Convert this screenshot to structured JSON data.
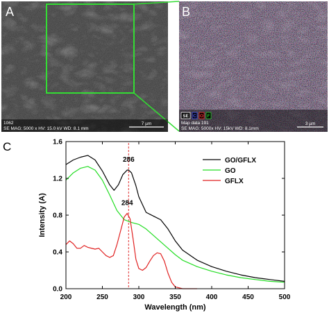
{
  "panels": {
    "a": {
      "letter": "A",
      "sample_id": "1062",
      "info": "SE  MAG: 5000 x  HV: 15.0 kV  WD: 8.1 mm",
      "scale_text": "7 µm",
      "colors": {
        "background": "#3a3a3a",
        "zoom_box": "#33dd33",
        "label": "#ffffff"
      }
    },
    "b": {
      "letter": "B",
      "map_text": "Map data 191",
      "info": "SE  MAG: 5000x  HV: 15kV  WD: 8.1mm",
      "scale_text": "3 µm",
      "legend": [
        {
          "text": "SE",
          "color": "#ffffff"
        },
        {
          "text": "C",
          "color": "#4d5bff"
        },
        {
          "text": "O",
          "color": "#ff3030"
        },
        {
          "text": "F",
          "color": "#2bd12b"
        }
      ]
    },
    "c": {
      "letter": "C"
    }
  },
  "chart_data": {
    "type": "line",
    "xlabel": "Wavelength (nm)",
    "ylabel": "Intensity (A)",
    "xlim": [
      200,
      500
    ],
    "ylim": [
      0,
      1.6
    ],
    "xticks": [
      200,
      250,
      300,
      350,
      400,
      450,
      500
    ],
    "yticks": [
      0.0,
      0.4,
      0.8,
      1.2,
      1.6
    ],
    "ytick_labels": [
      "0.0",
      "0.4",
      "0.8",
      "1.2",
      "1.6"
    ],
    "grid": false,
    "legend_position": "top-right",
    "annotations": [
      {
        "text": "286",
        "x": 286,
        "y": 1.29
      },
      {
        "text": "284",
        "x": 284,
        "y": 0.82
      }
    ],
    "marker_line": {
      "x": 286,
      "color": "#e03030"
    },
    "series": [
      {
        "name": "GO/GFLX",
        "color": "#000000",
        "x": [
          200,
          210,
          220,
          230,
          240,
          250,
          260,
          266,
          272,
          278,
          284,
          286,
          290,
          296,
          300,
          310,
          320,
          330,
          340,
          350,
          360,
          380,
          400,
          420,
          440,
          460,
          480,
          500
        ],
        "y": [
          1.35,
          1.4,
          1.43,
          1.45,
          1.4,
          1.28,
          1.13,
          1.07,
          1.13,
          1.24,
          1.29,
          1.29,
          1.26,
          1.12,
          1.0,
          0.83,
          0.79,
          0.75,
          0.65,
          0.52,
          0.42,
          0.31,
          0.24,
          0.19,
          0.15,
          0.12,
          0.1,
          0.08
        ]
      },
      {
        "name": "GO",
        "color": "#22dd22",
        "x": [
          200,
          210,
          220,
          230,
          240,
          250,
          260,
          270,
          280,
          290,
          300,
          310,
          320,
          330,
          340,
          350,
          360,
          380,
          400,
          420,
          440,
          460,
          480,
          500
        ],
        "y": [
          1.18,
          1.26,
          1.31,
          1.33,
          1.29,
          1.18,
          1.02,
          0.85,
          0.75,
          0.72,
          0.7,
          0.65,
          0.58,
          0.51,
          0.44,
          0.37,
          0.31,
          0.24,
          0.19,
          0.15,
          0.12,
          0.1,
          0.08,
          0.07
        ]
      },
      {
        "name": "GFLX",
        "color": "#e02020",
        "x": [
          200,
          205,
          210,
          215,
          220,
          225,
          230,
          240,
          245,
          250,
          255,
          260,
          265,
          270,
          276,
          280,
          284,
          288,
          292,
          296,
          300,
          305,
          310,
          315,
          320,
          325,
          330,
          335,
          340,
          345,
          350,
          355,
          360,
          370,
          380
        ],
        "y": [
          0.48,
          0.52,
          0.49,
          0.44,
          0.44,
          0.47,
          0.45,
          0.43,
          0.44,
          0.4,
          0.36,
          0.34,
          0.36,
          0.48,
          0.66,
          0.78,
          0.82,
          0.76,
          0.55,
          0.32,
          0.22,
          0.2,
          0.23,
          0.3,
          0.36,
          0.39,
          0.38,
          0.3,
          0.17,
          0.07,
          0.02,
          0.01,
          0.0,
          0.0,
          0.0
        ]
      }
    ]
  }
}
